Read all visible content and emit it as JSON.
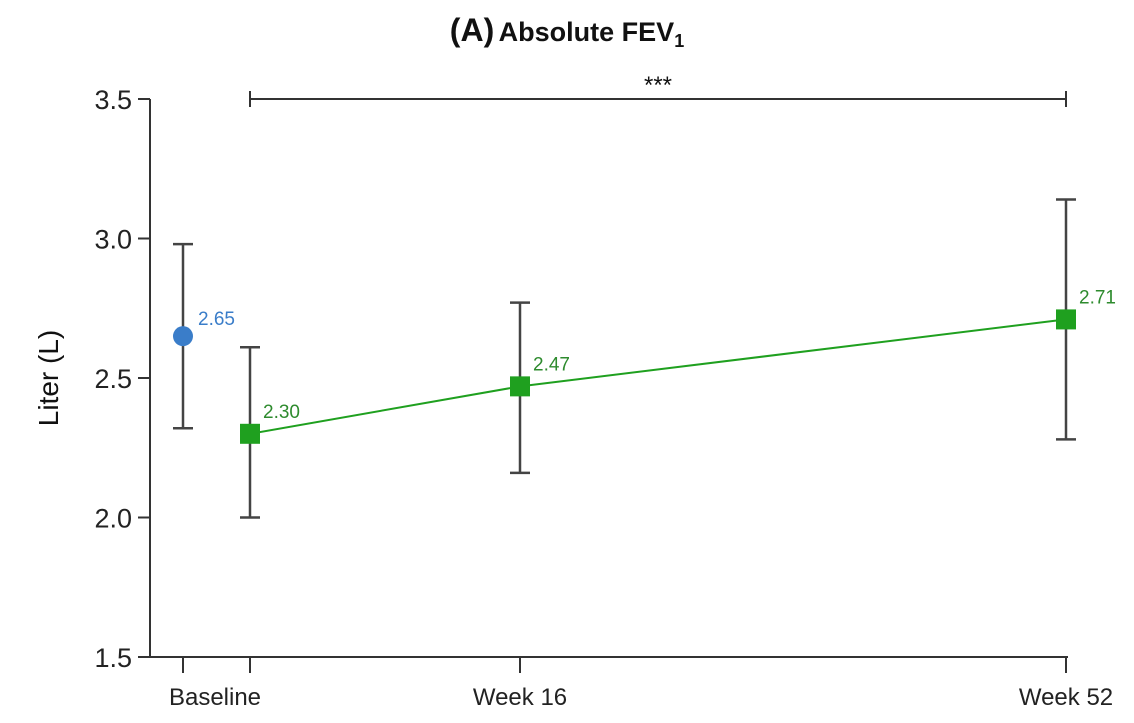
{
  "chart_data": {
    "type": "scatter",
    "title": {
      "panel": "(A)",
      "main": "Absolute FEV",
      "subscript": "1"
    },
    "ylabel": "Liter (L)",
    "xlabel": "",
    "ylim": [
      1.5,
      3.5
    ],
    "yticks": [
      "1.5",
      "2.0",
      "2.5",
      "3.0",
      "3.5"
    ],
    "ytick_values": [
      1.5,
      2.0,
      2.5,
      3.0,
      3.5
    ],
    "categories": [
      "Baseline",
      "Week 16",
      "Week 52"
    ],
    "grid": false,
    "series": [
      {
        "color": "#3a7dc9",
        "marker": "circle",
        "connected": false,
        "points": [
          {
            "category": "Baseline",
            "y": 2.65,
            "err_low": 2.32,
            "err_high": 2.98,
            "label": "2.65"
          }
        ]
      },
      {
        "color": "#1fa01f",
        "marker": "square",
        "connected": true,
        "points": [
          {
            "category": "Baseline",
            "y": 2.3,
            "err_low": 2.0,
            "err_high": 2.61,
            "label": "2.30"
          },
          {
            "category": "Week 16",
            "y": 2.47,
            "err_low": 2.16,
            "err_high": 2.77,
            "label": "2.47"
          },
          {
            "category": "Week 52",
            "y": 2.71,
            "err_low": 2.28,
            "err_high": 3.14,
            "label": "2.71"
          }
        ]
      }
    ],
    "annotations": [
      {
        "type": "significance_bracket",
        "from": "Baseline",
        "to": "Week 52",
        "y": 3.5,
        "text": "***"
      }
    ],
    "label_color_series_1": "#3a7dc9",
    "label_color_series_2": "#2e8b2e",
    "axis_color": "#333333",
    "errorbar_color": "#444444"
  }
}
